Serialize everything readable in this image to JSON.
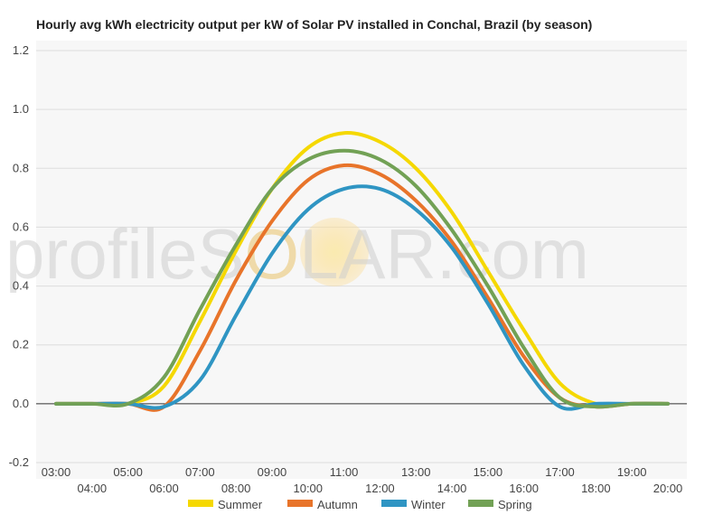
{
  "chart_data": {
    "type": "line",
    "title": "Hourly avg kWh electricity output per kW of Solar PV installed in Conchal, Brazil (by season)",
    "xlabel": "",
    "ylabel": "",
    "x": [
      "03:00",
      "04:00",
      "05:00",
      "06:00",
      "07:00",
      "08:00",
      "09:00",
      "10:00",
      "11:00",
      "12:00",
      "13:00",
      "14:00",
      "15:00",
      "16:00",
      "17:00",
      "18:00",
      "19:00",
      "20:00"
    ],
    "ylim": [
      -0.2,
      1.2
    ],
    "yticks": [
      "-0.2",
      "0.0",
      "0.2",
      "0.4",
      "0.6",
      "0.8",
      "1.0",
      "1.2"
    ],
    "grid": true,
    "legend_position": "bottom",
    "series": [
      {
        "name": "Summer",
        "color": "#f5d800",
        "values": [
          0,
          0,
          0,
          0.06,
          0.28,
          0.52,
          0.73,
          0.87,
          0.92,
          0.89,
          0.8,
          0.65,
          0.45,
          0.25,
          0.07,
          0,
          0,
          0
        ]
      },
      {
        "name": "Autumn",
        "color": "#e8742a",
        "values": [
          0,
          0,
          0,
          -0.01,
          0.18,
          0.42,
          0.62,
          0.76,
          0.81,
          0.78,
          0.69,
          0.55,
          0.36,
          0.16,
          0.02,
          -0.01,
          0,
          0
        ]
      },
      {
        "name": "Winter",
        "color": "#2f95c3",
        "values": [
          0,
          0,
          0,
          -0.01,
          0.08,
          0.3,
          0.51,
          0.66,
          0.73,
          0.73,
          0.66,
          0.53,
          0.34,
          0.13,
          -0.01,
          0,
          0,
          0
        ]
      },
      {
        "name": "Spring",
        "color": "#72a155",
        "values": [
          0,
          0,
          0,
          0.09,
          0.32,
          0.54,
          0.73,
          0.83,
          0.86,
          0.83,
          0.74,
          0.59,
          0.4,
          0.19,
          0.02,
          -0.01,
          0,
          0
        ]
      }
    ]
  },
  "watermark": {
    "left": "profileS",
    "mid": "O",
    "right": "LAR.com"
  }
}
